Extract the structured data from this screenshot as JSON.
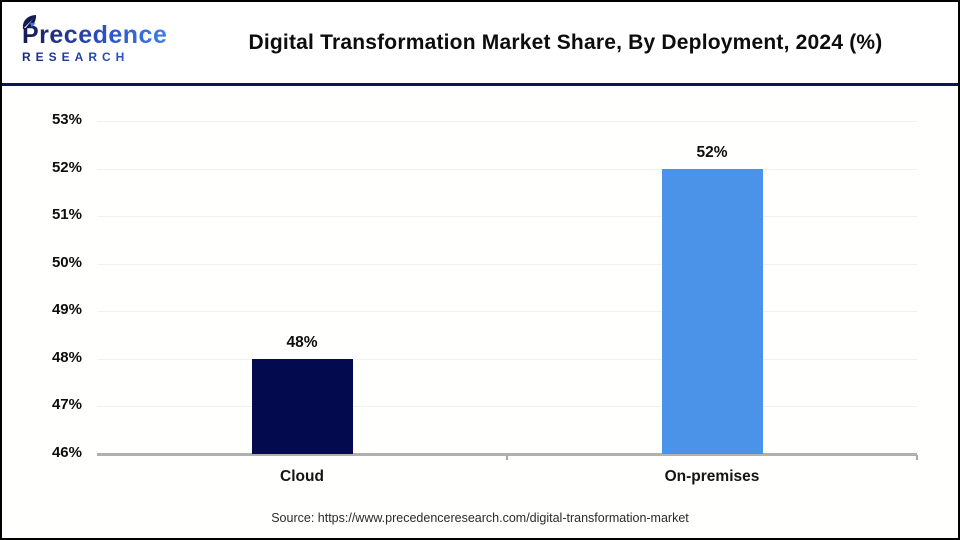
{
  "header": {
    "logo": {
      "name": "Precedence",
      "sub": "RESEARCH"
    },
    "title": "Digital Transformation Market Share, By Deployment, 2024 (%)"
  },
  "chart_data": {
    "type": "bar",
    "title": "Digital Transformation Market Share, By Deployment, 2024 (%)",
    "categories": [
      "Cloud",
      "On-premises"
    ],
    "values": [
      48,
      52
    ],
    "value_labels": [
      "48%",
      "52%"
    ],
    "bar_colors": [
      "#040a4e",
      "#4a93e8"
    ],
    "ylim": [
      46,
      53
    ],
    "yticks": [
      46,
      47,
      48,
      49,
      50,
      51,
      52,
      53
    ],
    "ytick_labels": [
      "46%",
      "47%",
      "48%",
      "49%",
      "50%",
      "51%",
      "52%",
      "53%"
    ],
    "xlabel": "",
    "ylabel": "",
    "grid": "horizontal-light",
    "legend": "none"
  },
  "footer": {
    "source": "Source: https://www.precedenceresearch.com/digital-transformation-market"
  },
  "colors": {
    "bar_cloud": "#040a4e",
    "bar_onpremises": "#4a93e8",
    "header_rule": "#10164e",
    "frame_border": "#000000",
    "axis_line": "#b0b0b0",
    "gridline": "#f0f0f0",
    "title_text": "#0d0d0d"
  }
}
